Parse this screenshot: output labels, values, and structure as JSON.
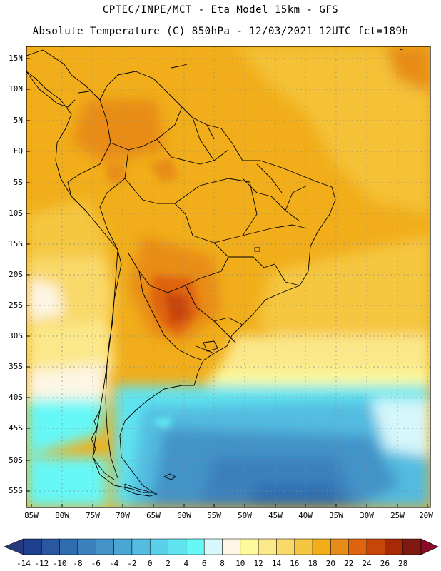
{
  "header": {
    "line1": "CPTEC/INPE/MCT -  Eta Model 15km - GFS",
    "line2": "Absolute Temperature (C) 850hPa - 12/03/2021 12UTC fct=189h"
  },
  "axes": {
    "lat_labels": [
      "15N",
      "10N",
      "5N",
      "EQ",
      "5S",
      "10S",
      "15S",
      "20S",
      "25S",
      "30S",
      "35S",
      "40S",
      "45S",
      "50S",
      "55S"
    ],
    "lon_labels": [
      "85W",
      "80W",
      "75W",
      "70W",
      "65W",
      "60W",
      "55W",
      "50W",
      "45W",
      "40W",
      "35W",
      "30W",
      "25W",
      "20W"
    ]
  },
  "colorbar": {
    "labels": [
      "-14",
      "-12",
      "-10",
      "-8",
      "-6",
      "-4",
      "-2",
      "0",
      "2",
      "4",
      "6",
      "8",
      "10",
      "12",
      "14",
      "16",
      "18",
      "20",
      "22",
      "24",
      "26",
      "28"
    ],
    "colors": [
      "#1f3f8f",
      "#2a58a0",
      "#2f6db0",
      "#3a80bd",
      "#4393c8",
      "#4aa7d3",
      "#53bce0",
      "#5ad0ea",
      "#5fe4f0",
      "#66f7f7",
      "#d6f7fb",
      "#fdf6e4",
      "#fcfa9c",
      "#fbe88a",
      "#f9d96a",
      "#f5c640",
      "#f1ae1a",
      "#e88c18",
      "#df6410",
      "#c84508",
      "#a52a05",
      "#7e1a10"
    ],
    "under_color": "#283a7e",
    "over_color": "#8a0a28"
  },
  "colors": {
    "frame": "#000000",
    "grid": "#8a8a8a",
    "coast": "#000000"
  }
}
